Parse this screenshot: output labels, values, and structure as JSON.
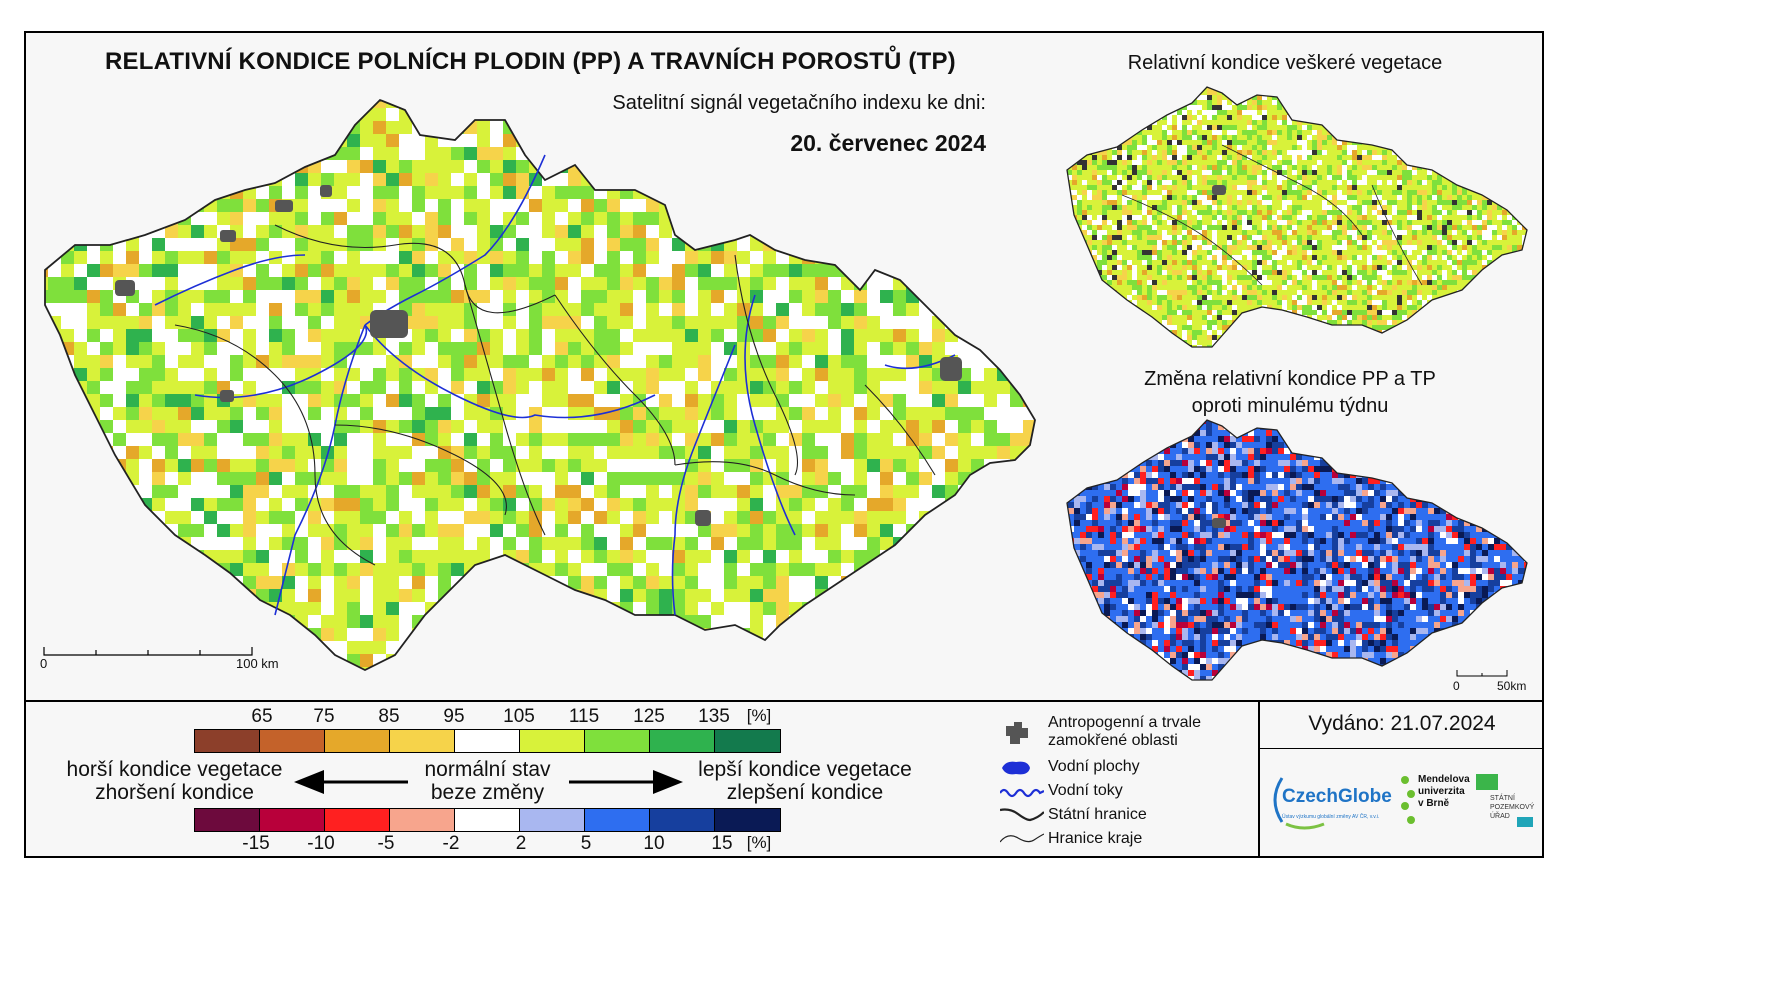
{
  "header": {
    "title": "RELATIVNÍ KONDICE POLNÍCH PLODIN (PP) A TRAVNÍCH POROSTŮ (TP)",
    "subtitle": "Satelitní signál vegetačního indexu ke dni:",
    "date": "20. červenec 2024"
  },
  "inset_maps": {
    "vegetation_title": "Relativní kondice veškeré vegetace",
    "change_title_line1": "Změna relativní kondice PP a TP",
    "change_title_line2": "oproti minulému týdnu"
  },
  "scales": {
    "main": {
      "start": "0",
      "end": "100 km"
    },
    "small": {
      "start": "0",
      "end": "50km"
    }
  },
  "legend_condition": {
    "labels": [
      "65",
      "75",
      "85",
      "95",
      "105",
      "115",
      "125",
      "135",
      "[%]"
    ],
    "colors": [
      "#8c3f2a",
      "#c4622a",
      "#e5a82a",
      "#f6d34a",
      "#ffffff",
      "#d8f23a",
      "#7fe03c",
      "#2fb24e",
      "#137a4d"
    ]
  },
  "legend_change": {
    "labels": [
      "-15",
      "-10",
      "-5",
      "-2",
      "2",
      "5",
      "10",
      "15",
      "[%]"
    ],
    "colors": [
      "#6d0a3d",
      "#b8003a",
      "#ff2020",
      "#f7a58d",
      "#ffffff",
      "#a9b7f0",
      "#2e6ef0",
      "#163f9e",
      "#0a1a55"
    ]
  },
  "legend_text": {
    "worse_line1": "horší kondice vegetace",
    "worse_line2": "zhoršení kondice",
    "normal_line1": "normální stav",
    "normal_line2": "beze změny",
    "better_line1": "lepší kondice vegetace",
    "better_line2": "zlepšení kondice"
  },
  "map_legend": {
    "urban_line1": "Antropogenní a trvale",
    "urban_line2": "zamokřené oblasti",
    "water_bodies": "Vodní plochy",
    "rivers": "Vodní toky",
    "state_border": "Státní hranice",
    "region_border": "Hranice kraje"
  },
  "issued": "Vydáno: 21.07.2024",
  "logos": {
    "czechglobe": "CzechGlobe",
    "czechglobe_sub": "Ústav výzkumu globální změny AV ČR, v.v.i.",
    "mendel_1": "Mendelova",
    "mendel_2": "univerzita",
    "mendel_3": "v Brně",
    "spu_1": "STÁTNÍ",
    "spu_2": "POZEMKOVÝ",
    "spu_3": "ÚŘAD"
  }
}
